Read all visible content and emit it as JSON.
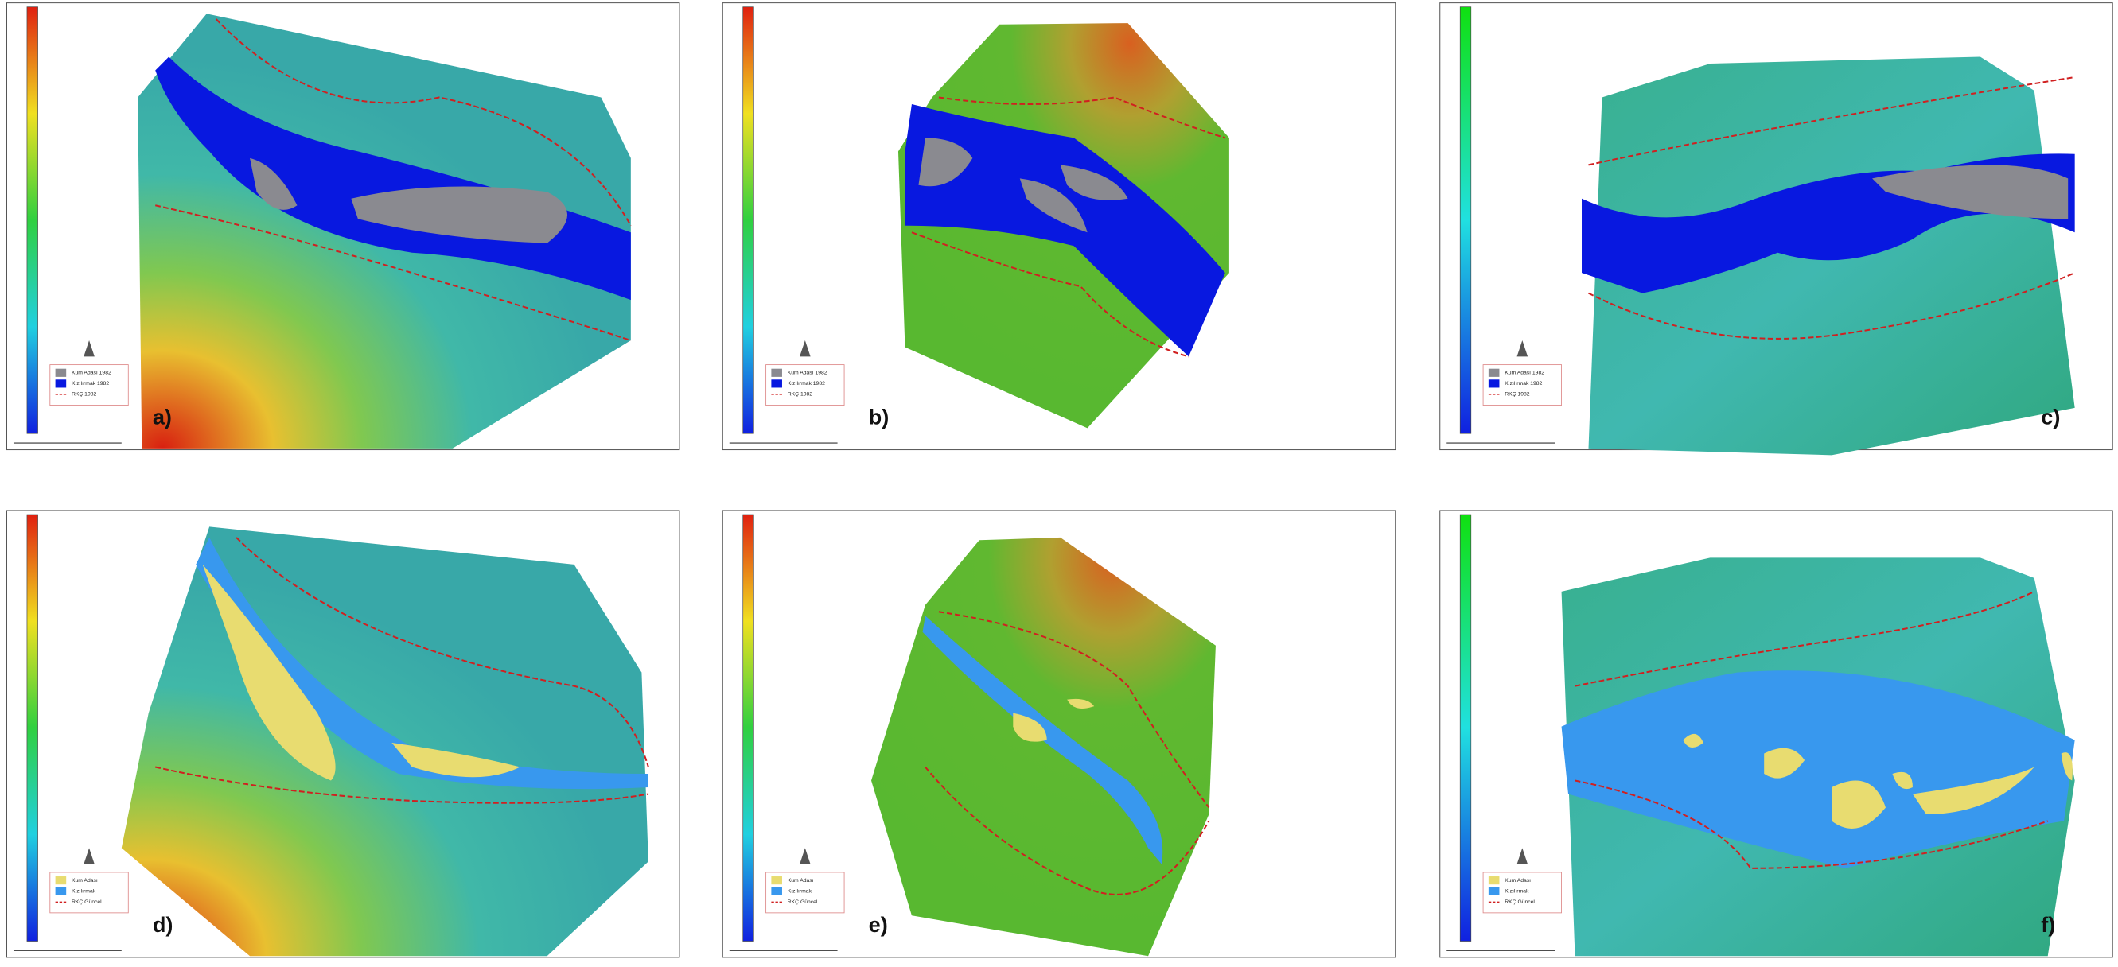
{
  "panels": [
    {
      "label": "a)",
      "legend": [
        "Kum Adası 1982",
        "Kızılırmak 1982",
        "RKÇ 1982"
      ]
    },
    {
      "label": "b)",
      "legend": [
        "Kum Adası 1982",
        "Kızılırmak 1982",
        "RKÇ 1982"
      ]
    },
    {
      "label": "c)",
      "legend": [
        "Kum Adası 1982",
        "Kızılırmak 1982",
        "RKÇ 1982"
      ]
    },
    {
      "label": "d)",
      "legend": [
        "Kum Adası",
        "Kızılırmak",
        "RKÇ Güncel"
      ]
    },
    {
      "label": "e)",
      "legend": [
        "Kum Adası",
        "Kızılırmak",
        "RKÇ Güncel"
      ]
    },
    {
      "label": "f)",
      "legend": [
        "Kum Adası",
        "Kızılırmak",
        "RKÇ Güncel"
      ]
    }
  ]
}
